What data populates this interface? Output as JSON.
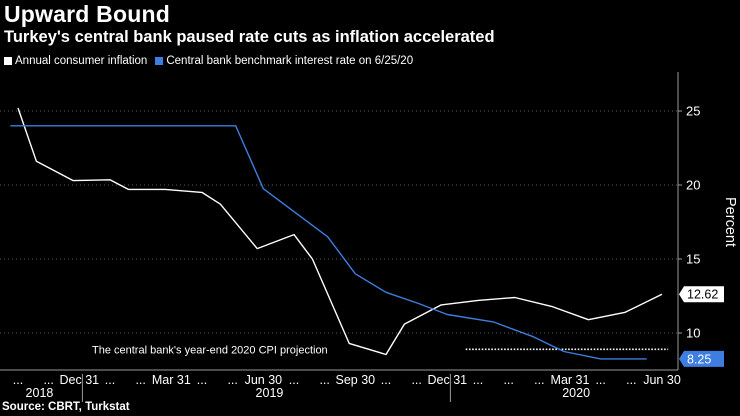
{
  "chart_data": {
    "type": "line",
    "title": "Upward Bound",
    "subtitle": "Turkey's central bank paused rate cuts as inflation accelerated",
    "ylabel": "Percent",
    "ylim": [
      7.5,
      27.5
    ],
    "yticks": [
      10,
      15,
      20,
      25
    ],
    "x_range": [
      -0.25,
      22.3
    ],
    "x_ticks": [
      {
        "pos": 0,
        "label": "..."
      },
      {
        "pos": 1,
        "label": "..."
      },
      {
        "pos": 2,
        "label": "Dec 31"
      },
      {
        "pos": 3,
        "label": "..."
      },
      {
        "pos": 4,
        "label": "..."
      },
      {
        "pos": 5,
        "label": "Mar 31"
      },
      {
        "pos": 6,
        "label": "..."
      },
      {
        "pos": 7,
        "label": "..."
      },
      {
        "pos": 8,
        "label": "Jun 30"
      },
      {
        "pos": 9,
        "label": "..."
      },
      {
        "pos": 10,
        "label": "..."
      },
      {
        "pos": 11,
        "label": "Sep 30"
      },
      {
        "pos": 12,
        "label": "..."
      },
      {
        "pos": 13,
        "label": "..."
      },
      {
        "pos": 14,
        "label": "Dec 31"
      },
      {
        "pos": 15,
        "label": "..."
      },
      {
        "pos": 16,
        "label": "..."
      },
      {
        "pos": 17,
        "label": "..."
      },
      {
        "pos": 18,
        "label": "Mar 31"
      },
      {
        "pos": 19,
        "label": "..."
      },
      {
        "pos": 20,
        "label": "..."
      },
      {
        "pos": 21,
        "label": "Jun 30"
      }
    ],
    "year_labels": [
      {
        "label": "2018",
        "pos": 0.7
      },
      {
        "label": "2019",
        "pos": 8.2
      },
      {
        "label": "2020",
        "pos": 18.2
      }
    ],
    "year_dividers": [
      2.1,
      14.1
    ],
    "series": [
      {
        "name": "Annual consumer inflation",
        "color": "#ffffff",
        "end_label": "12.62",
        "points": [
          [
            0,
            25.2
          ],
          [
            0.6,
            21.6
          ],
          [
            1.8,
            20.3
          ],
          [
            3.0,
            20.35
          ],
          [
            3.6,
            19.7
          ],
          [
            4.8,
            19.7
          ],
          [
            6.0,
            19.5
          ],
          [
            6.6,
            18.7
          ],
          [
            7.8,
            15.7
          ],
          [
            9.0,
            16.65
          ],
          [
            9.6,
            15.0
          ],
          [
            10.8,
            9.3
          ],
          [
            12.0,
            8.55
          ],
          [
            12.6,
            10.6
          ],
          [
            13.8,
            11.9
          ],
          [
            15.0,
            12.2
          ],
          [
            16.2,
            12.4
          ],
          [
            17.4,
            11.8
          ],
          [
            18.6,
            10.9
          ],
          [
            19.8,
            11.4
          ],
          [
            21.0,
            12.62
          ]
        ]
      },
      {
        "name": "Central bank benchmark interest rate on 6/25/20",
        "color": "#3d7ee0",
        "end_label": "8.25",
        "points": [
          [
            -0.25,
            24
          ],
          [
            7.1,
            24
          ],
          [
            8.0,
            19.75
          ],
          [
            10.1,
            16.5
          ],
          [
            11.0,
            14.0
          ],
          [
            12.0,
            12.75
          ],
          [
            13.05,
            12.0
          ],
          [
            14.0,
            11.25
          ],
          [
            15.5,
            10.75
          ],
          [
            16.8,
            9.75
          ],
          [
            17.8,
            8.75
          ],
          [
            19.0,
            8.25
          ],
          [
            20.5,
            8.25
          ]
        ]
      }
    ],
    "annotation": {
      "text": "The central bank's year-end 2020 CPI projection",
      "value": 8.9,
      "x_start": 14.6,
      "x_end": 21.2
    }
  },
  "source": "Source: CBRT, Turkstat"
}
